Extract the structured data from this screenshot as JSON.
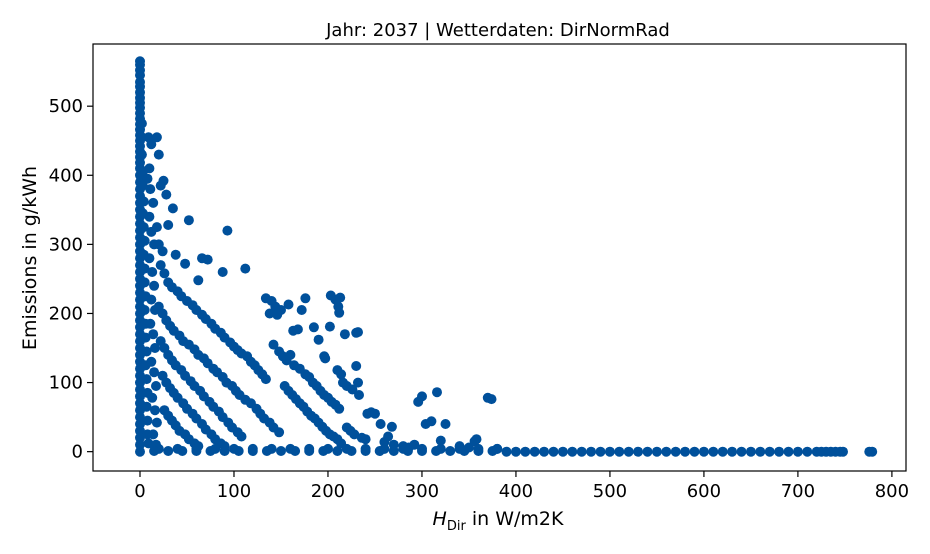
{
  "chart_data": {
    "type": "scatter",
    "title": "Jahr: 2037 | Wetterdaten: DirNormRad",
    "xlabel": {
      "symbol": "H",
      "subscript": "Dir",
      "suffix": " in W/m2K"
    },
    "ylabel": "Emissions in g/kWh",
    "xlim": [
      -50,
      815
    ],
    "ylim": [
      -28,
      590
    ],
    "xticks": [
      0,
      100,
      200,
      300,
      400,
      500,
      600,
      700,
      800
    ],
    "yticks": [
      0,
      100,
      200,
      300,
      400,
      500
    ],
    "grid": false,
    "legend": "none",
    "color": "#00509b",
    "points": [
      [
        0,
        565
      ],
      [
        0,
        560
      ],
      [
        0,
        552
      ],
      [
        0,
        545
      ],
      [
        0,
        535
      ],
      [
        0,
        528
      ],
      [
        0,
        520
      ],
      [
        0,
        512
      ],
      [
        0,
        505
      ],
      [
        0,
        498
      ],
      [
        0,
        490
      ],
      [
        0,
        482
      ],
      [
        0,
        474
      ],
      [
        0,
        466
      ],
      [
        0,
        458
      ],
      [
        0,
        450
      ],
      [
        0,
        442
      ],
      [
        0,
        434
      ],
      [
        0,
        426
      ],
      [
        0,
        418
      ],
      [
        0,
        410
      ],
      [
        0,
        400
      ],
      [
        0,
        390
      ],
      [
        0,
        380
      ],
      [
        0,
        370
      ],
      [
        0,
        360
      ],
      [
        0,
        350
      ],
      [
        0,
        340
      ],
      [
        0,
        330
      ],
      [
        0,
        320
      ],
      [
        0,
        310
      ],
      [
        0,
        300
      ],
      [
        0,
        290
      ],
      [
        0,
        280
      ],
      [
        0,
        270
      ],
      [
        0,
        260
      ],
      [
        0,
        250
      ],
      [
        0,
        240
      ],
      [
        0,
        230
      ],
      [
        0,
        220
      ],
      [
        0,
        210
      ],
      [
        0,
        200
      ],
      [
        0,
        190
      ],
      [
        0,
        180
      ],
      [
        0,
        170
      ],
      [
        0,
        160
      ],
      [
        0,
        150
      ],
      [
        0,
        140
      ],
      [
        0,
        130
      ],
      [
        0,
        120
      ],
      [
        0,
        110
      ],
      [
        0,
        100
      ],
      [
        0,
        90
      ],
      [
        0,
        80
      ],
      [
        0,
        70
      ],
      [
        0,
        60
      ],
      [
        0,
        50
      ],
      [
        0,
        40
      ],
      [
        0,
        30
      ],
      [
        0,
        20
      ],
      [
        0,
        10
      ],
      [
        0,
        0
      ],
      [
        2,
        475
      ],
      [
        2,
        455
      ],
      [
        2,
        430
      ],
      [
        3,
        405
      ],
      [
        3,
        385
      ],
      [
        4,
        362
      ],
      [
        3,
        345
      ],
      [
        4,
        325
      ],
      [
        5,
        305
      ],
      [
        4,
        285
      ],
      [
        5,
        265
      ],
      [
        5,
        245
      ],
      [
        6,
        225
      ],
      [
        5,
        205
      ],
      [
        6,
        185
      ],
      [
        6,
        165
      ],
      [
        7,
        145
      ],
      [
        6,
        125
      ],
      [
        7,
        105
      ],
      [
        8,
        85
      ],
      [
        7,
        65
      ],
      [
        8,
        45
      ],
      [
        8,
        25
      ],
      [
        9,
        12
      ],
      [
        9,
        455
      ],
      [
        12,
        445
      ],
      [
        10,
        410
      ],
      [
        8,
        395
      ],
      [
        11,
        380
      ],
      [
        14,
        360
      ],
      [
        10,
        340
      ],
      [
        12,
        318
      ],
      [
        15,
        300
      ],
      [
        10,
        280
      ],
      [
        13,
        260
      ],
      [
        15,
        240
      ],
      [
        12,
        220
      ],
      [
        16,
        205
      ],
      [
        11,
        185
      ],
      [
        14,
        170
      ],
      [
        16,
        150
      ],
      [
        12,
        130
      ],
      [
        15,
        115
      ],
      [
        17,
        95
      ],
      [
        13,
        78
      ],
      [
        16,
        60
      ],
      [
        18,
        42
      ],
      [
        14,
        25
      ],
      [
        17,
        10
      ],
      [
        18,
        455
      ],
      [
        20,
        430
      ],
      [
        22,
        385
      ],
      [
        25,
        392
      ],
      [
        28,
        372
      ],
      [
        35,
        352
      ],
      [
        30,
        328
      ],
      [
        18,
        325
      ],
      [
        20,
        300
      ],
      [
        24,
        290
      ],
      [
        38,
        285
      ],
      [
        52,
        335
      ],
      [
        48,
        272
      ],
      [
        66,
        280
      ],
      [
        72,
        278
      ],
      [
        62,
        248
      ],
      [
        88,
        260
      ],
      [
        93,
        320
      ],
      [
        112,
        265
      ],
      [
        22,
        270
      ],
      [
        26,
        258
      ],
      [
        30,
        245
      ],
      [
        34,
        238
      ],
      [
        40,
        232
      ],
      [
        44,
        225
      ],
      [
        50,
        218
      ],
      [
        56,
        212
      ],
      [
        60,
        205
      ],
      [
        66,
        198
      ],
      [
        70,
        192
      ],
      [
        76,
        185
      ],
      [
        80,
        178
      ],
      [
        86,
        172
      ],
      [
        90,
        165
      ],
      [
        96,
        158
      ],
      [
        100,
        152
      ],
      [
        104,
        147
      ],
      [
        108,
        142
      ],
      [
        114,
        138
      ],
      [
        118,
        130
      ],
      [
        122,
        125
      ],
      [
        126,
        118
      ],
      [
        130,
        112
      ],
      [
        134,
        105
      ],
      [
        20,
        210
      ],
      [
        24,
        200
      ],
      [
        28,
        190
      ],
      [
        32,
        182
      ],
      [
        36,
        175
      ],
      [
        42,
        168
      ],
      [
        46,
        160
      ],
      [
        52,
        155
      ],
      [
        58,
        148
      ],
      [
        62,
        140
      ],
      [
        68,
        135
      ],
      [
        72,
        128
      ],
      [
        78,
        120
      ],
      [
        82,
        115
      ],
      [
        88,
        108
      ],
      [
        92,
        100
      ],
      [
        98,
        95
      ],
      [
        102,
        88
      ],
      [
        106,
        82
      ],
      [
        112,
        75
      ],
      [
        118,
        70
      ],
      [
        124,
        62
      ],
      [
        128,
        55
      ],
      [
        132,
        48
      ],
      [
        138,
        42
      ],
      [
        142,
        35
      ],
      [
        148,
        28
      ],
      [
        22,
        160
      ],
      [
        26,
        150
      ],
      [
        30,
        140
      ],
      [
        34,
        132
      ],
      [
        38,
        125
      ],
      [
        44,
        118
      ],
      [
        48,
        110
      ],
      [
        54,
        102
      ],
      [
        58,
        95
      ],
      [
        64,
        88
      ],
      [
        68,
        80
      ],
      [
        74,
        72
      ],
      [
        78,
        65
      ],
      [
        84,
        58
      ],
      [
        88,
        50
      ],
      [
        94,
        42
      ],
      [
        98,
        35
      ],
      [
        104,
        28
      ],
      [
        108,
        22
      ],
      [
        24,
        110
      ],
      [
        28,
        100
      ],
      [
        32,
        92
      ],
      [
        36,
        85
      ],
      [
        40,
        78
      ],
      [
        46,
        70
      ],
      [
        50,
        62
      ],
      [
        56,
        55
      ],
      [
        60,
        48
      ],
      [
        66,
        40
      ],
      [
        70,
        32
      ],
      [
        76,
        25
      ],
      [
        80,
        18
      ],
      [
        86,
        12
      ],
      [
        90,
        8
      ],
      [
        26,
        60
      ],
      [
        30,
        52
      ],
      [
        34,
        45
      ],
      [
        38,
        38
      ],
      [
        42,
        30
      ],
      [
        48,
        25
      ],
      [
        52,
        18
      ],
      [
        58,
        12
      ],
      [
        62,
        8
      ],
      [
        134,
        222
      ],
      [
        140,
        218
      ],
      [
        144,
        210
      ],
      [
        150,
        205
      ],
      [
        138,
        200
      ],
      [
        146,
        198
      ],
      [
        158,
        213
      ],
      [
        163,
        175
      ],
      [
        168,
        177
      ],
      [
        172,
        205
      ],
      [
        176,
        222
      ],
      [
        185,
        180
      ],
      [
        190,
        162
      ],
      [
        196,
        138
      ],
      [
        197,
        135
      ],
      [
        202,
        181
      ],
      [
        203,
        226
      ],
      [
        208,
        220
      ],
      [
        211,
        210
      ],
      [
        212,
        201
      ],
      [
        213,
        223
      ],
      [
        218,
        170
      ],
      [
        230,
        172
      ],
      [
        232,
        173
      ],
      [
        142,
        155
      ],
      [
        148,
        145
      ],
      [
        152,
        138
      ],
      [
        156,
        132
      ],
      [
        160,
        140
      ],
      [
        164,
        125
      ],
      [
        170,
        120
      ],
      [
        176,
        112
      ],
      [
        180,
        108
      ],
      [
        184,
        100
      ],
      [
        188,
        95
      ],
      [
        192,
        88
      ],
      [
        196,
        82
      ],
      [
        200,
        78
      ],
      [
        204,
        72
      ],
      [
        208,
        68
      ],
      [
        212,
        62
      ],
      [
        154,
        95
      ],
      [
        158,
        88
      ],
      [
        162,
        82
      ],
      [
        166,
        76
      ],
      [
        170,
        70
      ],
      [
        174,
        65
      ],
      [
        178,
        58
      ],
      [
        182,
        52
      ],
      [
        186,
        48
      ],
      [
        190,
        42
      ],
      [
        194,
        36
      ],
      [
        198,
        30
      ],
      [
        202,
        25
      ],
      [
        206,
        22
      ],
      [
        210,
        18
      ],
      [
        214,
        12
      ],
      [
        210,
        118
      ],
      [
        214,
        112
      ],
      [
        216,
        100
      ],
      [
        220,
        95
      ],
      [
        226,
        90
      ],
      [
        230,
        124
      ],
      [
        232,
        100
      ],
      [
        233,
        82
      ],
      [
        220,
        35
      ],
      [
        224,
        30
      ],
      [
        228,
        25
      ],
      [
        236,
        20
      ],
      [
        240,
        18
      ],
      [
        242,
        55
      ],
      [
        246,
        57
      ],
      [
        250,
        55
      ],
      [
        256,
        40
      ],
      [
        260,
        14
      ],
      [
        264,
        22
      ],
      [
        268,
        36
      ],
      [
        270,
        10
      ],
      [
        280,
        8
      ],
      [
        286,
        6
      ],
      [
        292,
        10
      ],
      [
        296,
        72
      ],
      [
        300,
        80
      ],
      [
        304,
        40
      ],
      [
        310,
        44
      ],
      [
        316,
        86
      ],
      [
        320,
        16
      ],
      [
        325,
        40
      ],
      [
        340,
        8
      ],
      [
        350,
        6
      ],
      [
        356,
        15
      ],
      [
        358,
        18
      ],
      [
        370,
        78
      ],
      [
        374,
        76
      ],
      [
        380,
        4
      ],
      [
        20,
        4
      ],
      [
        40,
        4
      ],
      [
        60,
        4
      ],
      [
        80,
        4
      ],
      [
        100,
        4
      ],
      [
        120,
        4
      ],
      [
        140,
        4
      ],
      [
        160,
        4
      ],
      [
        180,
        4
      ],
      [
        200,
        4
      ],
      [
        220,
        4
      ],
      [
        240,
        4
      ],
      [
        260,
        4
      ],
      [
        280,
        4
      ],
      [
        300,
        4
      ],
      [
        320,
        4
      ],
      [
        340,
        4
      ],
      [
        360,
        4
      ],
      [
        380,
        4
      ],
      [
        15,
        1
      ],
      [
        30,
        1
      ],
      [
        45,
        1
      ],
      [
        60,
        1
      ],
      [
        75,
        1
      ],
      [
        90,
        1
      ],
      [
        105,
        1
      ],
      [
        120,
        1
      ],
      [
        135,
        1
      ],
      [
        150,
        1
      ],
      [
        165,
        1
      ],
      [
        180,
        1
      ],
      [
        195,
        1
      ],
      [
        210,
        1
      ],
      [
        225,
        1
      ],
      [
        240,
        1
      ],
      [
        255,
        1
      ],
      [
        270,
        1
      ],
      [
        285,
        1
      ],
      [
        300,
        1
      ],
      [
        315,
        1
      ],
      [
        330,
        1
      ],
      [
        345,
        1
      ],
      [
        360,
        1
      ],
      [
        375,
        1
      ],
      [
        390,
        0
      ],
      [
        400,
        0
      ],
      [
        410,
        0
      ],
      [
        420,
        0
      ],
      [
        430,
        0
      ],
      [
        440,
        0
      ],
      [
        450,
        0
      ],
      [
        460,
        0
      ],
      [
        470,
        0
      ],
      [
        480,
        0
      ],
      [
        490,
        0
      ],
      [
        500,
        0
      ],
      [
        510,
        0
      ],
      [
        520,
        0
      ],
      [
        530,
        0
      ],
      [
        540,
        0
      ],
      [
        550,
        0
      ],
      [
        560,
        0
      ],
      [
        570,
        0
      ],
      [
        580,
        0
      ],
      [
        590,
        0
      ],
      [
        600,
        0
      ],
      [
        610,
        0
      ],
      [
        620,
        0
      ],
      [
        630,
        0
      ],
      [
        640,
        0
      ],
      [
        650,
        0
      ],
      [
        660,
        0
      ],
      [
        670,
        0
      ],
      [
        680,
        0
      ],
      [
        690,
        0
      ],
      [
        700,
        0
      ],
      [
        710,
        0
      ],
      [
        720,
        0
      ],
      [
        725,
        0
      ],
      [
        730,
        0
      ],
      [
        735,
        0
      ],
      [
        740,
        0
      ],
      [
        745,
        0
      ],
      [
        748,
        0
      ],
      [
        776,
        0
      ],
      [
        779,
        0
      ]
    ]
  }
}
